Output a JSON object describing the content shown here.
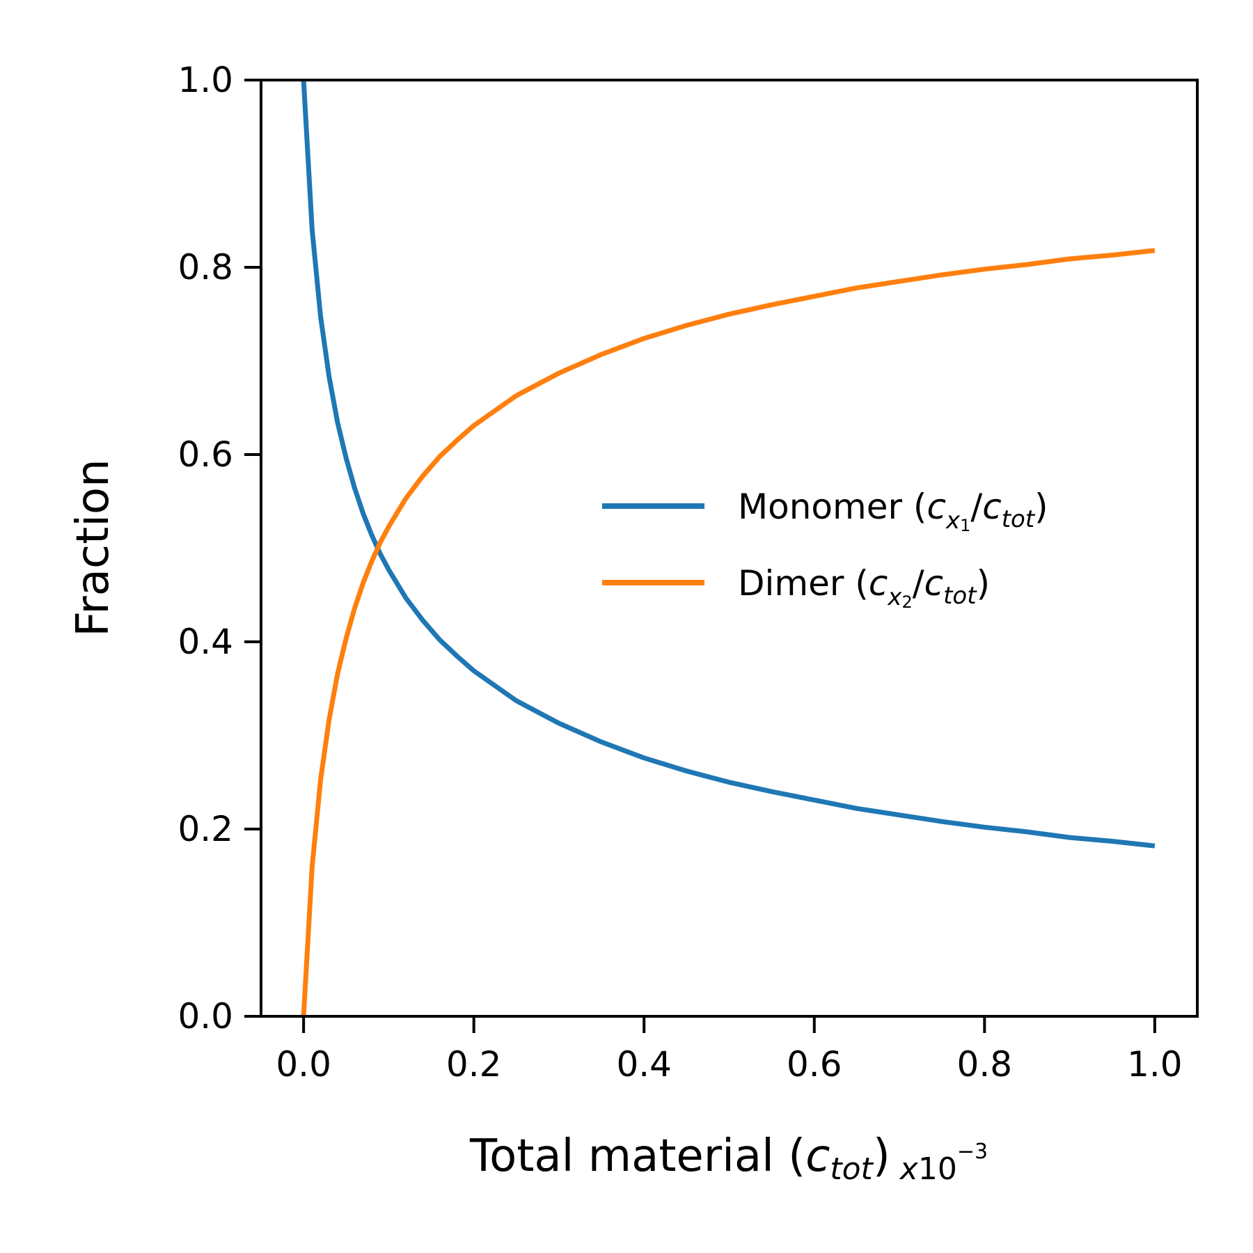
{
  "chart_data": {
    "type": "line",
    "title": "",
    "xlabel": {
      "prefix": "Total material (",
      "var": "c",
      "sub": "tot",
      "suffix": ")",
      "multiplier_base": "x10",
      "multiplier_exp": "−3"
    },
    "ylabel": "Fraction",
    "xlim": [
      -0.05,
      1.05
    ],
    "ylim": [
      0.0,
      1.0
    ],
    "xticks": [
      "0.0",
      "0.2",
      "0.4",
      "0.6",
      "0.8",
      "1.0"
    ],
    "yticks": [
      "0.0",
      "0.2",
      "0.4",
      "0.6",
      "0.8",
      "1.0"
    ],
    "grid": false,
    "legend_position": "center-right",
    "x": [
      0.0,
      0.01,
      0.02,
      0.03,
      0.04,
      0.05,
      0.06,
      0.07,
      0.08,
      0.09,
      0.1,
      0.12,
      0.14,
      0.16,
      0.18,
      0.2,
      0.25,
      0.3,
      0.35,
      0.4,
      0.45,
      0.5,
      0.55,
      0.6,
      0.65,
      0.7,
      0.75,
      0.8,
      0.85,
      0.9,
      0.95,
      1.0
    ],
    "series": [
      {
        "name": {
          "prefix": "Monomer (",
          "var": "c",
          "sub1": "x",
          "sub2": "1",
          "mid": "/",
          "var2": "c",
          "sub3": "tot",
          "suffix": ")"
        },
        "color": "#1f77b4",
        "values": [
          1.0,
          0.84,
          0.747,
          0.683,
          0.634,
          0.596,
          0.564,
          0.537,
          0.514,
          0.494,
          0.477,
          0.447,
          0.423,
          0.402,
          0.385,
          0.369,
          0.337,
          0.313,
          0.293,
          0.276,
          0.262,
          0.25,
          0.24,
          0.231,
          0.222,
          0.215,
          0.208,
          0.202,
          0.197,
          0.191,
          0.187,
          0.182
        ]
      },
      {
        "name": {
          "prefix": "Dimer (",
          "var": "c",
          "sub1": "x",
          "sub2": "2",
          "mid": "/",
          "var2": "c",
          "sub3": "tot",
          "suffix": ")"
        },
        "color": "#ff7f0e",
        "values": [
          0.0,
          0.16,
          0.253,
          0.317,
          0.366,
          0.404,
          0.436,
          0.463,
          0.486,
          0.506,
          0.523,
          0.553,
          0.577,
          0.598,
          0.615,
          0.631,
          0.663,
          0.687,
          0.707,
          0.724,
          0.738,
          0.75,
          0.76,
          0.769,
          0.778,
          0.785,
          0.792,
          0.798,
          0.803,
          0.809,
          0.813,
          0.818
        ]
      }
    ]
  }
}
